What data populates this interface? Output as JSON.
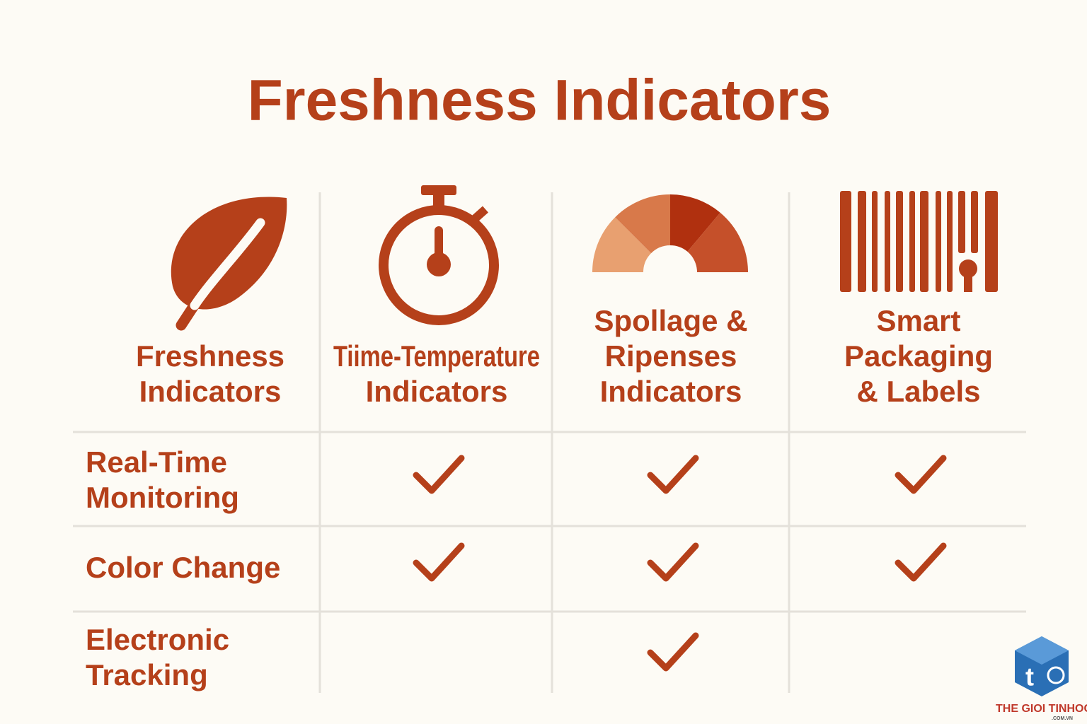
{
  "title": "Freshness Indicators",
  "columns": [
    {
      "label_lines": [
        "Freshness",
        "Indicators"
      ]
    },
    {
      "label_lines": [
        "Tiime-Temperature",
        "Indicators"
      ]
    },
    {
      "label_lines": [
        "Spollage &",
        "Ripenses",
        "Indicators"
      ]
    },
    {
      "label_lines": [
        "Smart",
        "Packaging",
        "& Labels"
      ]
    }
  ],
  "rows": [
    {
      "label_lines": [
        "Real-Time",
        "Monitoring"
      ],
      "checks": [
        true,
        true,
        true
      ]
    },
    {
      "label_lines": [
        "Color Change"
      ],
      "checks": [
        true,
        true,
        true
      ]
    },
    {
      "label_lines": [
        "Electronic",
        "Tracking"
      ],
      "checks": [
        false,
        true,
        false
      ]
    }
  ],
  "watermark": {
    "logo": "t",
    "text": "THE GIOI TINHOC",
    "domain": ".COM.VN"
  }
}
